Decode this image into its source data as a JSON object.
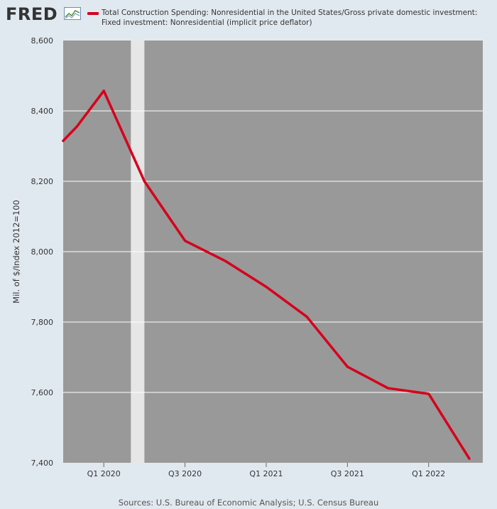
{
  "header": {
    "logo_text": "FRED",
    "logo_icon": "line-chart-icon"
  },
  "chart_data": {
    "type": "line",
    "legend": [
      {
        "label": "Total Construction Spending: Nonresidential in the United States/Gross private domestic investment: Fixed investment: Nonresidential (implicit price deflator)",
        "color": "#d6001c"
      }
    ],
    "ylabel": "Mil. of $/Index 2012=100",
    "xlabel": "",
    "ylim": [
      7400,
      8600
    ],
    "yticks": [
      7400,
      7600,
      7800,
      8000,
      8200,
      8400,
      8600
    ],
    "ytick_labels": [
      "7,400",
      "7,600",
      "7,800",
      "8,000",
      "8,200",
      "8,400",
      "8,600"
    ],
    "xlim": [
      "2019-10",
      "2022-05"
    ],
    "xticks": [
      "2020-01",
      "2020-07",
      "2021-01",
      "2021-07",
      "2022-01"
    ],
    "xtick_labels": [
      "Q1 2020",
      "Q3 2020",
      "Q1 2021",
      "Q3 2021",
      "Q1 2022"
    ],
    "recession": [
      "2020-03",
      "2020-04"
    ],
    "series": [
      {
        "color": "#d6001c",
        "x": [
          "2019-10",
          "2019-11",
          "2020-01",
          "2020-04",
          "2020-07",
          "2020-10",
          "2021-01",
          "2021-04",
          "2021-07",
          "2021-10",
          "2022-01",
          "2022-04"
        ],
        "values": [
          8315,
          8355,
          8457,
          8200,
          8031,
          7973,
          7900,
          7815,
          7673,
          7612,
          7596,
          7412
        ]
      }
    ],
    "grid": true
  },
  "source": "Sources: U.S. Bureau of Economic Analysis; U.S. Census Bureau"
}
